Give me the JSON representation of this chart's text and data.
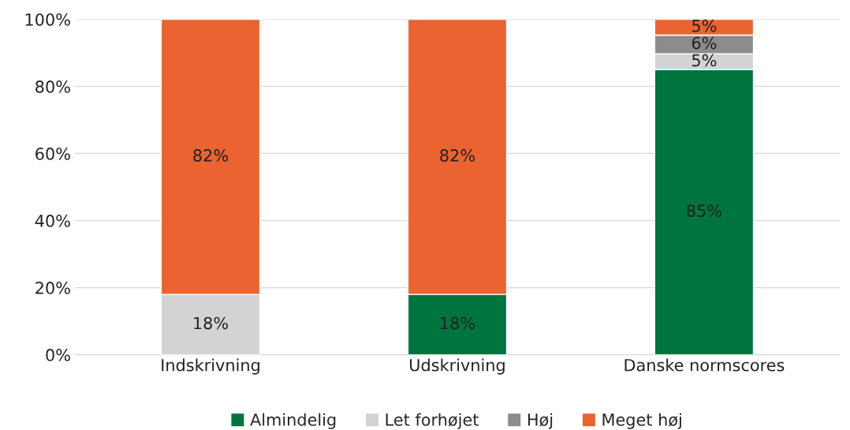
{
  "chart_data": {
    "type": "bar",
    "stacked": true,
    "categories": [
      "Indskrivning",
      "Udskrivning",
      "Danske normscores"
    ],
    "series": [
      {
        "name": "Almindelig",
        "color": "#00743f",
        "values": [
          null,
          18,
          85
        ],
        "value_labels": [
          null,
          "18%",
          "85%"
        ]
      },
      {
        "name": "Let forhøjet",
        "color": "#d3d3d5",
        "values": [
          18,
          null,
          4.7
        ],
        "value_labels": [
          "18%",
          null,
          "5%"
        ]
      },
      {
        "name": "Høj",
        "color": "#8c8c8c",
        "values": [
          null,
          null,
          5.6
        ],
        "value_labels": [
          null,
          null,
          "6%"
        ]
      },
      {
        "name": "Meget høj",
        "color": "#eb6330",
        "values": [
          82,
          82,
          4.7
        ],
        "value_labels": [
          "82%",
          "82%",
          "5%"
        ]
      }
    ],
    "ylim": [
      0,
      100
    ],
    "yticks": [
      {
        "value": 0,
        "label": "0%"
      },
      {
        "value": 20,
        "label": "20%"
      },
      {
        "value": 40,
        "label": "40%"
      },
      {
        "value": 60,
        "label": "60%"
      },
      {
        "value": 80,
        "label": "80%"
      },
      {
        "value": 100,
        "label": "100%"
      }
    ],
    "grid": "y",
    "legend": "bottom"
  }
}
